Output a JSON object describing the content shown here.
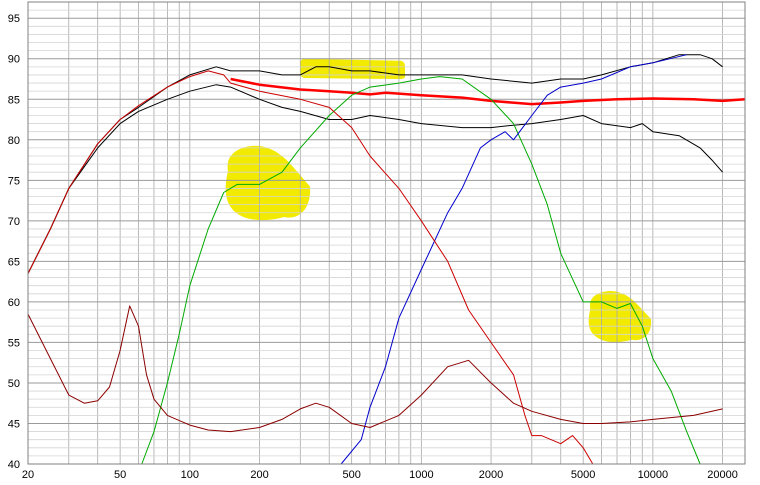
{
  "chart_data": {
    "type": "line",
    "title": "",
    "xlabel": "",
    "ylabel": "",
    "x_scale": "log",
    "xlim": [
      20,
      25000
    ],
    "ylim": [
      40,
      97
    ],
    "grid": true,
    "x_ticks": [
      20,
      50,
      100,
      200,
      500,
      1000,
      2000,
      5000,
      10000,
      20000
    ],
    "x_tick_labels": [
      "20",
      "50",
      "100",
      "200",
      "500",
      "1000",
      "2000",
      "5000",
      "10000",
      "20000"
    ],
    "y_ticks": [
      40,
      45,
      50,
      55,
      60,
      65,
      70,
      75,
      80,
      85,
      90,
      95
    ],
    "y_tick_labels": [
      "40",
      "45",
      "50",
      "55",
      "60",
      "65",
      "70",
      "75",
      "80",
      "85",
      "90",
      "95"
    ],
    "series": [
      {
        "color": "#000000",
        "width": 1,
        "points": [
          [
            20,
            63.5
          ],
          [
            25,
            69
          ],
          [
            30,
            74
          ],
          [
            40,
            79.5
          ],
          [
            50,
            82.5
          ],
          [
            60,
            84
          ],
          [
            80,
            86.5
          ],
          [
            100,
            88
          ],
          [
            130,
            89
          ],
          [
            150,
            88.5
          ],
          [
            200,
            88.5
          ],
          [
            250,
            88
          ],
          [
            300,
            88
          ],
          [
            350,
            89
          ],
          [
            400,
            89
          ],
          [
            500,
            88.5
          ],
          [
            600,
            88.5
          ],
          [
            800,
            88
          ],
          [
            1000,
            88
          ],
          [
            1500,
            88
          ],
          [
            2000,
            87.5
          ],
          [
            3000,
            87
          ],
          [
            4000,
            87.5
          ],
          [
            5000,
            87.5
          ],
          [
            6000,
            88
          ],
          [
            8000,
            89
          ],
          [
            10000,
            89.5
          ],
          [
            13000,
            90.5
          ],
          [
            16000,
            90.5
          ],
          [
            18000,
            90
          ],
          [
            20000,
            89
          ]
        ]
      },
      {
        "color": "#000000",
        "width": 1,
        "points": [
          [
            20,
            63.5
          ],
          [
            25,
            69
          ],
          [
            30,
            74
          ],
          [
            40,
            79
          ],
          [
            50,
            82
          ],
          [
            60,
            83.5
          ],
          [
            80,
            85
          ],
          [
            100,
            86
          ],
          [
            130,
            86.8
          ],
          [
            150,
            86.5
          ],
          [
            200,
            85
          ],
          [
            250,
            84
          ],
          [
            300,
            83.5
          ],
          [
            400,
            82.5
          ],
          [
            500,
            82.5
          ],
          [
            600,
            83
          ],
          [
            800,
            82.5
          ],
          [
            1000,
            82
          ],
          [
            1500,
            81.5
          ],
          [
            2000,
            81.5
          ],
          [
            2500,
            81.8
          ],
          [
            3000,
            82
          ],
          [
            4000,
            82.5
          ],
          [
            5000,
            83
          ],
          [
            6000,
            82
          ],
          [
            8000,
            81.5
          ],
          [
            9000,
            82
          ],
          [
            10000,
            81
          ],
          [
            13000,
            80.5
          ],
          [
            16000,
            79
          ],
          [
            18000,
            77.5
          ],
          [
            20000,
            76
          ]
        ]
      },
      {
        "color": "#ff0000",
        "width": 2.5,
        "points": [
          [
            150,
            87.5
          ],
          [
            200,
            86.8
          ],
          [
            300,
            86.2
          ],
          [
            400,
            86
          ],
          [
            500,
            85.8
          ],
          [
            600,
            85.6
          ],
          [
            700,
            85.8
          ],
          [
            800,
            85.7
          ],
          [
            1000,
            85.5
          ],
          [
            1500,
            85.2
          ],
          [
            2000,
            84.8
          ],
          [
            3000,
            84.4
          ],
          [
            4000,
            84.6
          ],
          [
            5000,
            84.8
          ],
          [
            7000,
            85
          ],
          [
            10000,
            85.1
          ],
          [
            15000,
            85
          ],
          [
            20000,
            84.8
          ],
          [
            25000,
            85
          ]
        ]
      },
      {
        "color": "#00aa00",
        "width": 1,
        "points": [
          [
            62,
            40
          ],
          [
            70,
            44
          ],
          [
            80,
            50
          ],
          [
            90,
            56
          ],
          [
            100,
            62
          ],
          [
            120,
            69
          ],
          [
            140,
            73.5
          ],
          [
            160,
            74.5
          ],
          [
            200,
            74.5
          ],
          [
            250,
            76
          ],
          [
            300,
            79
          ],
          [
            400,
            83
          ],
          [
            500,
            85.5
          ],
          [
            600,
            86.5
          ],
          [
            800,
            87
          ],
          [
            1000,
            87.5
          ],
          [
            1200,
            87.8
          ],
          [
            1500,
            87.5
          ],
          [
            2000,
            85
          ],
          [
            2500,
            82
          ],
          [
            3000,
            77
          ],
          [
            3500,
            72
          ],
          [
            4000,
            66
          ],
          [
            5000,
            60
          ],
          [
            6000,
            60
          ],
          [
            7000,
            59.2
          ],
          [
            8000,
            59.8
          ],
          [
            9000,
            57
          ],
          [
            10000,
            53
          ],
          [
            12000,
            49
          ],
          [
            14000,
            44
          ],
          [
            16000,
            40
          ]
        ]
      },
      {
        "color": "#0000cc",
        "width": 1,
        "points": [
          [
            20,
            40
          ],
          [
            300,
            40
          ],
          [
            450,
            40
          ],
          [
            550,
            43
          ],
          [
            600,
            47
          ],
          [
            700,
            52
          ],
          [
            800,
            58
          ],
          [
            1000,
            64
          ],
          [
            1300,
            71
          ],
          [
            1500,
            74
          ],
          [
            1800,
            79
          ],
          [
            2000,
            80
          ],
          [
            2300,
            81
          ],
          [
            2500,
            80
          ],
          [
            3000,
            83
          ],
          [
            3500,
            85.5
          ],
          [
            4000,
            86.5
          ],
          [
            5000,
            87
          ],
          [
            6000,
            87.5
          ],
          [
            8000,
            89
          ],
          [
            10000,
            89.5
          ],
          [
            14000,
            90.5
          ]
        ]
      },
      {
        "color": "#cc0000",
        "width": 1,
        "points": [
          [
            20,
            63.5
          ],
          [
            25,
            69
          ],
          [
            30,
            74
          ],
          [
            40,
            79.5
          ],
          [
            50,
            82.5
          ],
          [
            60,
            84.2
          ],
          [
            80,
            86.5
          ],
          [
            100,
            87.8
          ],
          [
            120,
            88.5
          ],
          [
            140,
            88
          ],
          [
            150,
            87
          ],
          [
            200,
            86
          ],
          [
            300,
            85
          ],
          [
            400,
            84
          ],
          [
            500,
            81.5
          ],
          [
            600,
            78
          ],
          [
            800,
            74
          ],
          [
            1000,
            70
          ],
          [
            1300,
            65
          ],
          [
            1600,
            59
          ],
          [
            2000,
            55
          ],
          [
            2500,
            51
          ],
          [
            2800,
            46
          ],
          [
            3000,
            43.5
          ],
          [
            3300,
            43.5
          ],
          [
            4000,
            42.5
          ],
          [
            4500,
            43.5
          ],
          [
            5000,
            42
          ],
          [
            5500,
            40
          ]
        ]
      },
      {
        "color": "#8b0000",
        "width": 1,
        "points": [
          [
            20,
            58.5
          ],
          [
            25,
            53
          ],
          [
            30,
            48.5
          ],
          [
            35,
            47.5
          ],
          [
            40,
            47.8
          ],
          [
            45,
            49.5
          ],
          [
            50,
            54
          ],
          [
            55,
            59.5
          ],
          [
            60,
            57
          ],
          [
            65,
            51
          ],
          [
            70,
            48
          ],
          [
            80,
            46
          ],
          [
            100,
            44.8
          ],
          [
            120,
            44.2
          ],
          [
            150,
            44
          ],
          [
            200,
            44.5
          ],
          [
            250,
            45.5
          ],
          [
            300,
            46.8
          ],
          [
            350,
            47.5
          ],
          [
            400,
            47
          ],
          [
            500,
            45
          ],
          [
            600,
            44.5
          ],
          [
            800,
            46
          ],
          [
            1000,
            48.5
          ],
          [
            1300,
            52
          ],
          [
            1600,
            52.8
          ],
          [
            2000,
            50
          ],
          [
            2500,
            47.5
          ],
          [
            3000,
            46.5
          ],
          [
            4000,
            45.5
          ],
          [
            5000,
            45
          ],
          [
            6000,
            45
          ],
          [
            8000,
            45.2
          ],
          [
            10000,
            45.5
          ],
          [
            15000,
            46
          ],
          [
            20000,
            46.8
          ]
        ]
      }
    ],
    "highlights": [
      {
        "shape": "blob-rect",
        "color": "#f2ea00",
        "x_range": [
          300,
          850
        ],
        "y_range": [
          87.5,
          90
        ]
      },
      {
        "shape": "blob",
        "color": "#f2ea00",
        "x_range": [
          140,
          330
        ],
        "y_range": [
          70,
          79.5
        ]
      },
      {
        "shape": "blob",
        "color": "#f2ea00",
        "x_range": [
          5200,
          9800
        ],
        "y_range": [
          55,
          61.5
        ]
      }
    ]
  }
}
